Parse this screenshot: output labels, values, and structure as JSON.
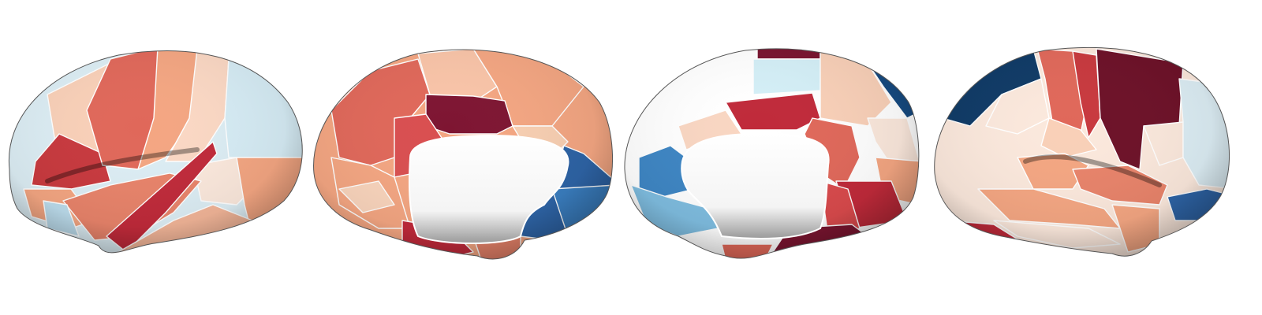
{
  "figure": {
    "description": "",
    "views": [
      {
        "id": "left-lateral",
        "label": ""
      },
      {
        "id": "left-medial",
        "label": ""
      },
      {
        "id": "right-medial",
        "label": ""
      },
      {
        "id": "right-lateral",
        "label": ""
      }
    ]
  },
  "colors": {
    "background": "#ffffff",
    "colormap": "RdBu_r",
    "dark_red": "#7a1530",
    "red": "#c02a3a",
    "salmon": "#e0685a",
    "light_salmon": "#f4a682",
    "peach": "#f9d0b8",
    "cream": "#fbe8dc",
    "light_blue": "#d6ecf5",
    "mid_blue": "#68a8d8",
    "blue": "#3a7ec0",
    "dark_blue": "#164a80",
    "medial_wall": "#ffffff"
  }
}
